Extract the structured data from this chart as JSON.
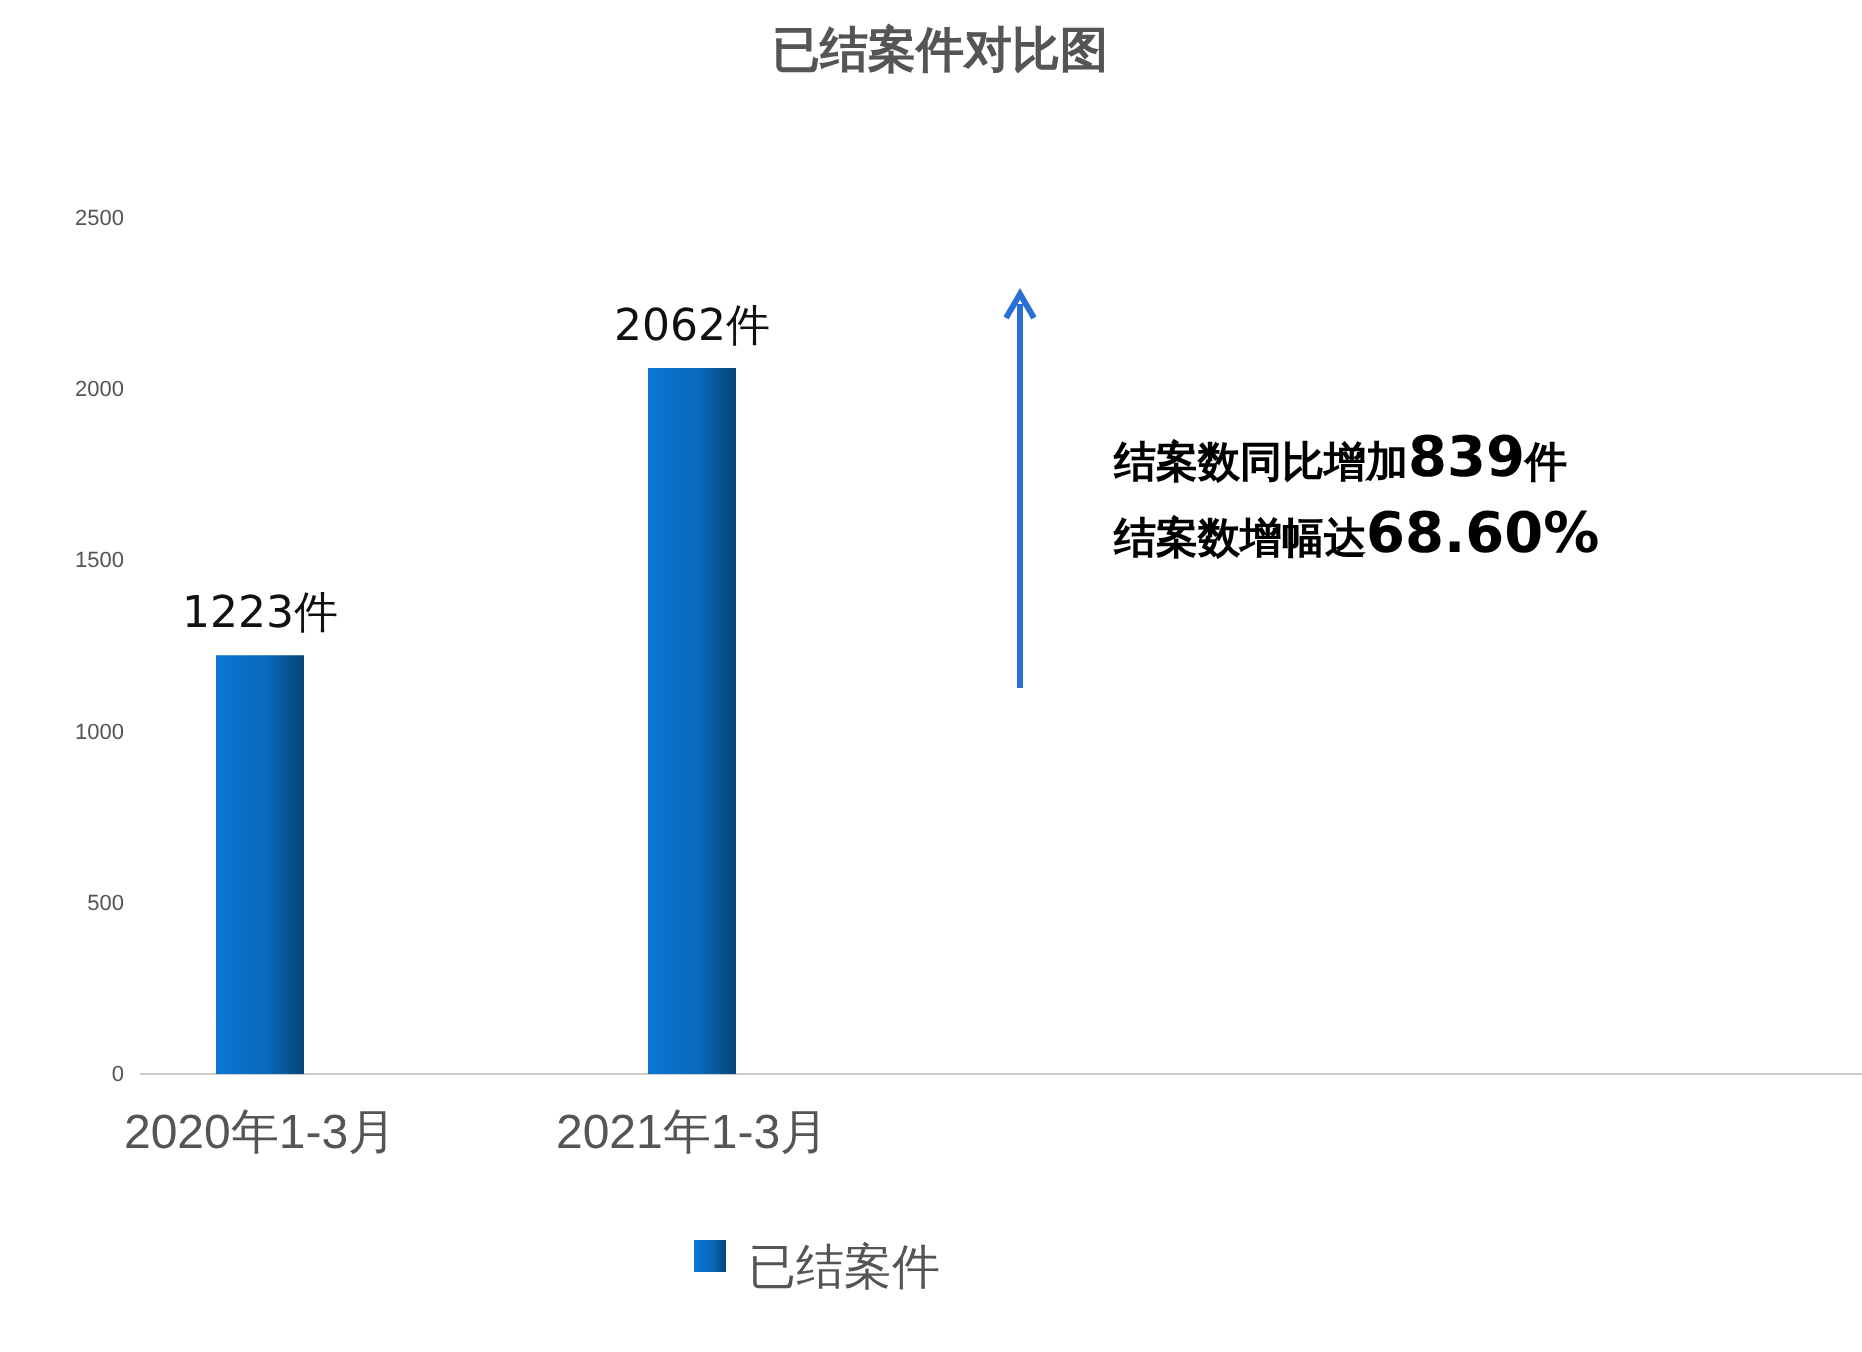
{
  "chart_data": {
    "type": "bar",
    "title": "已结案件对比图",
    "categories": [
      "2020年1-3月",
      "2021年1-3月"
    ],
    "series": [
      {
        "name": "已结案件",
        "color": "#0868b8",
        "values": [
          1223,
          2062
        ]
      }
    ],
    "value_labels": [
      "1223件",
      "2062件"
    ],
    "ylim": [
      0,
      2500
    ],
    "yticks": [
      0,
      500,
      1000,
      1500,
      2000,
      2500
    ],
    "grid": false,
    "legend": "bottom",
    "annotations": [
      "结案数同比增加839件",
      "结案数增幅达68.60%"
    ]
  }
}
